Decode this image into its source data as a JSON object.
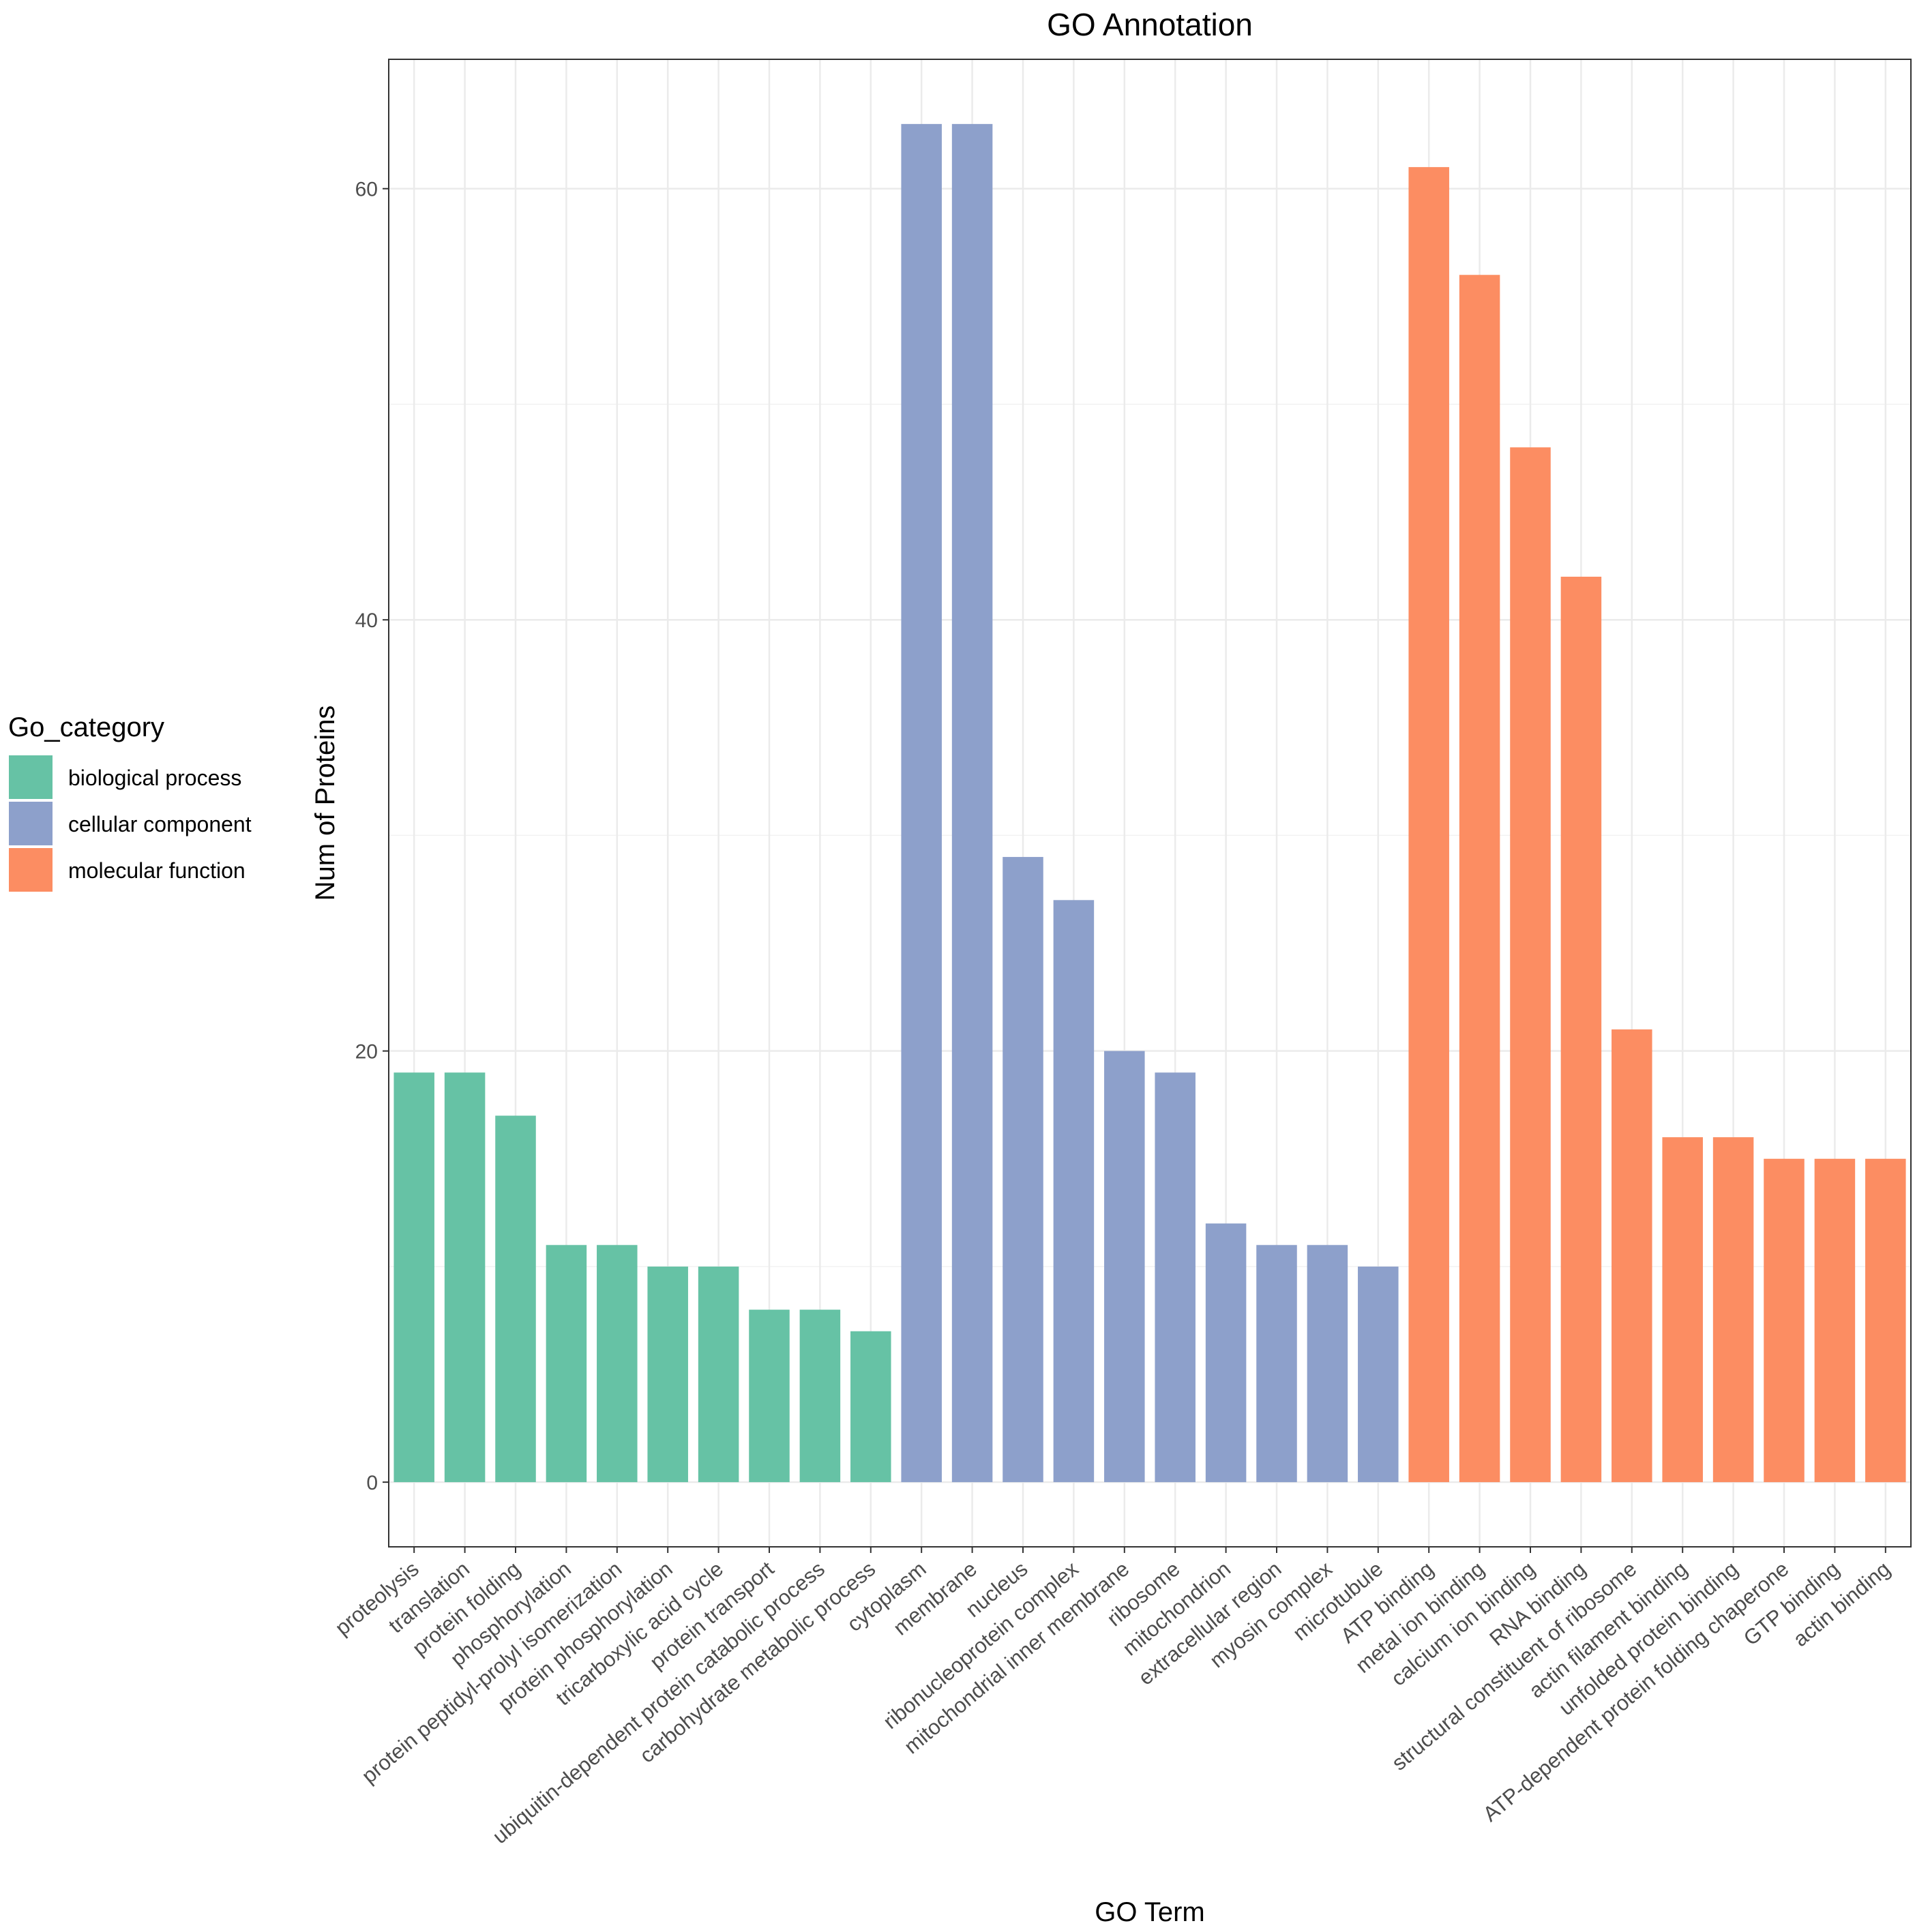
{
  "chart_data": {
    "type": "bar",
    "title": "GO Annotation",
    "xlabel": "GO Term",
    "ylabel": "Num of Proteins",
    "ylim": [
      -3,
      66
    ],
    "yticks": [
      0,
      20,
      40,
      60
    ],
    "grid": true,
    "legend": {
      "title": "Go_category",
      "position": "left",
      "entries": [
        {
          "label": "biological process",
          "color": "#66c2a5"
        },
        {
          "label": "cellular component",
          "color": "#8da0cb"
        },
        {
          "label": "molecular function",
          "color": "#fc8d62"
        }
      ]
    },
    "categories": [
      "proteolysis",
      "translation",
      "protein folding",
      "phosphorylation",
      "protein peptidyl-prolyl isomerization",
      "protein phosphorylation",
      "tricarboxylic acid cycle",
      "protein transport",
      "ubiquitin-dependent protein catabolic process",
      "carbohydrate metabolic process",
      "cytoplasm",
      "membrane",
      "nucleus",
      "ribonucleoprotein complex",
      "mitochondrial inner membrane",
      "ribosome",
      "mitochondrion",
      "extracellular region",
      "myosin complex",
      "microtubule",
      "ATP binding",
      "metal ion binding",
      "calcium ion binding",
      "RNA binding",
      "structural constituent of ribosome",
      "actin filament binding",
      "unfolded protein binding",
      "ATP-dependent protein folding chaperone",
      "GTP binding",
      "actin binding"
    ],
    "values": [
      19,
      19,
      17,
      11,
      11,
      10,
      10,
      8,
      8,
      7,
      63,
      63,
      29,
      27,
      20,
      19,
      12,
      11,
      11,
      10,
      61,
      56,
      48,
      42,
      21,
      16,
      16,
      15,
      15,
      15
    ],
    "group": [
      0,
      0,
      0,
      0,
      0,
      0,
      0,
      0,
      0,
      0,
      1,
      1,
      1,
      1,
      1,
      1,
      1,
      1,
      1,
      1,
      2,
      2,
      2,
      2,
      2,
      2,
      2,
      2,
      2,
      2
    ]
  }
}
